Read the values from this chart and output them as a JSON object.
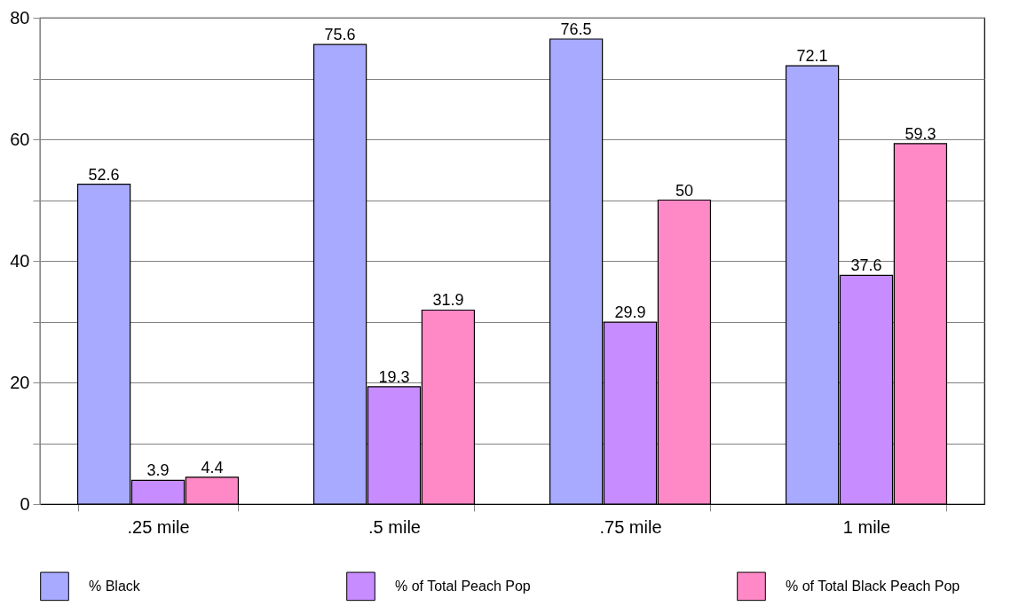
{
  "chart_data": {
    "type": "bar",
    "categories": [
      ".25 mile",
      ".5 mile",
      ".75 mile",
      "1 mile"
    ],
    "series": [
      {
        "name": "% Black",
        "color": "#a8aaff",
        "values": [
          52.6,
          75.6,
          76.5,
          72.1
        ]
      },
      {
        "name": "% of Total Peach Pop",
        "color": "#c78cff",
        "values": [
          3.9,
          19.3,
          29.9,
          37.6
        ]
      },
      {
        "name": "% of Total Black Peach Pop",
        "color": "#ff88c6",
        "values": [
          4.4,
          31.9,
          50,
          59.3
        ]
      }
    ],
    "ylim": [
      0,
      80
    ],
    "yticks": [
      0,
      {
        "value": 10,
        "label": null
      },
      20,
      {
        "value": 30,
        "label": null
      },
      40,
      {
        "value": 50,
        "label": null
      },
      60,
      {
        "value": 70,
        "label": null
      },
      80
    ],
    "grid": "y",
    "legend": "bottom",
    "data_labels": true
  }
}
